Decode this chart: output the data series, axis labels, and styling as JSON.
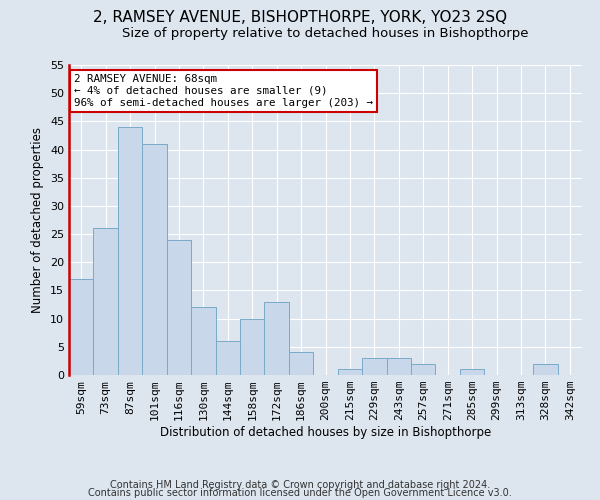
{
  "title": "2, RAMSEY AVENUE, BISHOPTHORPE, YORK, YO23 2SQ",
  "subtitle": "Size of property relative to detached houses in Bishopthorpe",
  "xlabel": "Distribution of detached houses by size in Bishopthorpe",
  "ylabel": "Number of detached properties",
  "bar_labels": [
    "59sqm",
    "73sqm",
    "87sqm",
    "101sqm",
    "116sqm",
    "130sqm",
    "144sqm",
    "158sqm",
    "172sqm",
    "186sqm",
    "200sqm",
    "215sqm",
    "229sqm",
    "243sqm",
    "257sqm",
    "271sqm",
    "285sqm",
    "299sqm",
    "313sqm",
    "328sqm",
    "342sqm"
  ],
  "bar_values": [
    17,
    26,
    44,
    41,
    24,
    12,
    6,
    10,
    13,
    4,
    0,
    1,
    3,
    3,
    2,
    0,
    1,
    0,
    0,
    2,
    0
  ],
  "ylim": [
    0,
    55
  ],
  "yticks": [
    0,
    5,
    10,
    15,
    20,
    25,
    30,
    35,
    40,
    45,
    50,
    55
  ],
  "bar_color": "#c8d8ea",
  "bar_edge_color": "#7aaac8",
  "highlight_line_color": "#cc0000",
  "annotation_text": "2 RAMSEY AVENUE: 68sqm\n← 4% of detached houses are smaller (9)\n96% of semi-detached houses are larger (203) →",
  "annotation_box_facecolor": "#ffffff",
  "annotation_box_edgecolor": "#cc0000",
  "footer_line1": "Contains HM Land Registry data © Crown copyright and database right 2024.",
  "footer_line2": "Contains public sector information licensed under the Open Government Licence v3.0.",
  "background_color": "#dde5ef",
  "plot_bg_color": "#dde5ef",
  "grid_color": "#ffffff",
  "title_fontsize": 11,
  "subtitle_fontsize": 9.5,
  "axis_label_fontsize": 8.5,
  "tick_fontsize": 8,
  "footer_fontsize": 7
}
